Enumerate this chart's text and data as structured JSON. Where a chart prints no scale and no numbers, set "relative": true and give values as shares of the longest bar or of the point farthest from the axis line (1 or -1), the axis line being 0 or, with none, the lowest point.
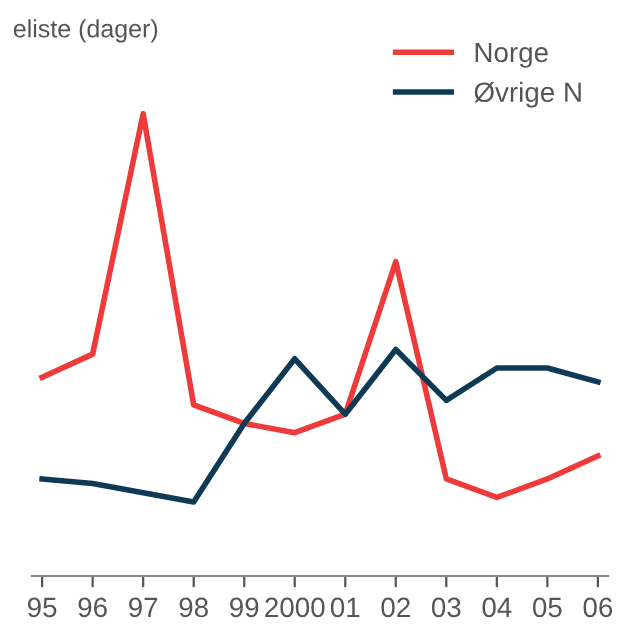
{
  "chart_data": {
    "type": "line",
    "relative": true,
    "ylabel": "eliste (dager)",
    "categories": [
      "95",
      "96",
      "97",
      "98",
      "99",
      "2000",
      "01",
      "02",
      "03",
      "04",
      "05",
      "06"
    ],
    "series": [
      {
        "name": "Norge",
        "color": "#ee3a3a",
        "values": [
          0.43,
          0.48,
          1.0,
          0.37,
          0.33,
          0.31,
          0.35,
          0.68,
          0.21,
          0.17,
          0.21,
          0.26
        ]
      },
      {
        "name": "Øvrige N",
        "color": "#0e3a55",
        "values": [
          0.21,
          0.2,
          0.18,
          0.16,
          0.33,
          0.47,
          0.35,
          0.49,
          0.38,
          0.45,
          0.45,
          0.42
        ]
      }
    ],
    "legend": "top right",
    "grid": false,
    "marker": "none",
    "line_style": "solid"
  }
}
